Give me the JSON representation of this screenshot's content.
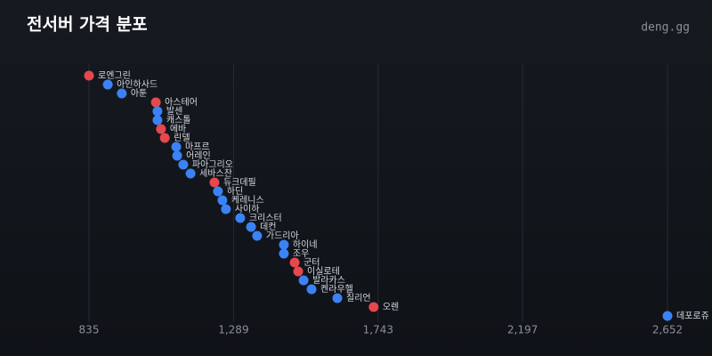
{
  "chart_data": {
    "type": "dot",
    "title": "전서버 가격 분포",
    "brand": "deng.gg",
    "categories": [
      "로엔그린",
      "아인하사드",
      "아툰",
      "아스테어",
      "발센",
      "캐스톨",
      "에바",
      "린델",
      "마프르",
      "어레인",
      "파아그리오",
      "세바스찬",
      "듀크데필",
      "하딘",
      "케레니스",
      "사이하",
      "크리스터",
      "데컨",
      "가드리아",
      "하이네",
      "조우",
      "군터",
      "이실로테",
      "발라카스",
      "켄라우헬",
      "질리언",
      "오렌",
      "데포로쥬"
    ],
    "values": [
      835,
      894,
      938,
      1045,
      1050,
      1050,
      1061,
      1073,
      1109,
      1112,
      1131,
      1154,
      1229,
      1240,
      1254,
      1265,
      1310,
      1344,
      1363,
      1447,
      1447,
      1481,
      1492,
      1509,
      1534,
      1615,
      1729,
      2652
    ],
    "colors": [
      "#e5484d",
      "#3b82f6",
      "#3b82f6",
      "#e5484d",
      "#3b82f6",
      "#3b82f6",
      "#e5484d",
      "#e5484d",
      "#3b82f6",
      "#3b82f6",
      "#3b82f6",
      "#3b82f6",
      "#e5484d",
      "#3b82f6",
      "#3b82f6",
      "#3b82f6",
      "#3b82f6",
      "#3b82f6",
      "#3b82f6",
      "#3b82f6",
      "#3b82f6",
      "#e5484d",
      "#e5484d",
      "#3b82f6",
      "#3b82f6",
      "#3b82f6",
      "#e5484d",
      "#3b82f6"
    ],
    "xlim": [
      835,
      2652
    ],
    "xticks": [
      835,
      {
        "value": 1289,
        "label": "1,289"
      },
      {
        "value": 1743,
        "label": "1,743"
      },
      {
        "value": 2197,
        "label": "2,197"
      },
      {
        "value": 2652,
        "label": "2,652"
      }
    ],
    "grid": true
  }
}
